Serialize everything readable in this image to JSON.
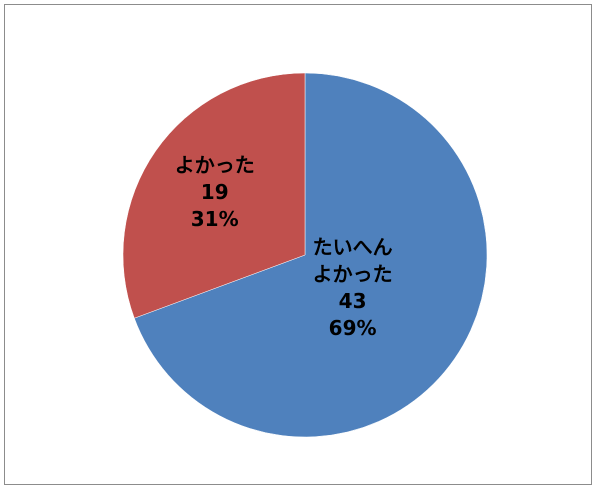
{
  "chart_data": {
    "type": "pie",
    "title": "",
    "slices": [
      {
        "label": "たいへん\nよかった",
        "value": 43,
        "percent": "69%",
        "color": "#4f81bd"
      },
      {
        "label": "よかった",
        "value": 19,
        "percent": "31%",
        "color": "#c0504d"
      }
    ],
    "start_angle_deg": 0,
    "direction": "clockwise",
    "legend": "none"
  }
}
